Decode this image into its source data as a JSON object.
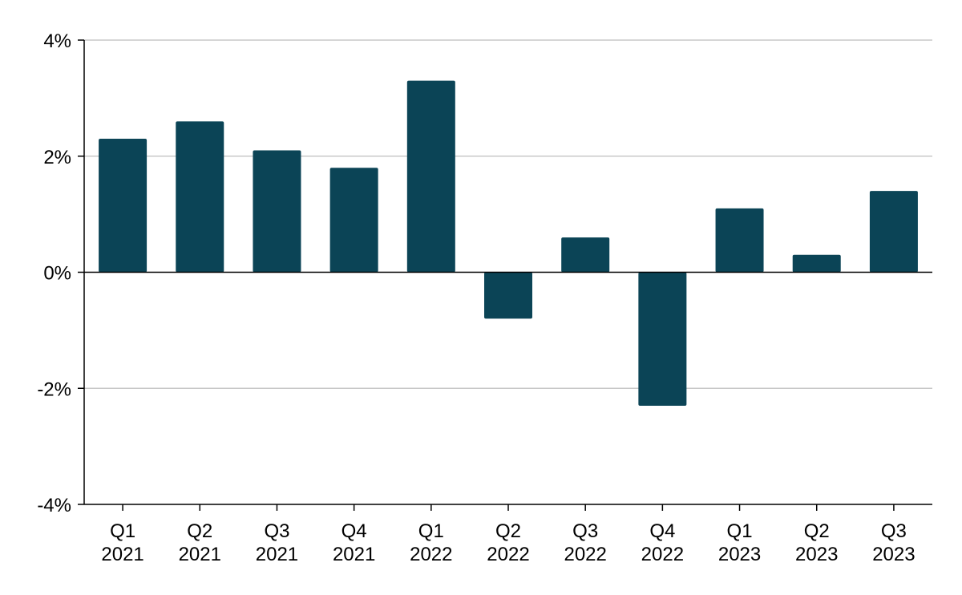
{
  "chart_data": {
    "type": "bar",
    "title": "",
    "xlabel": "",
    "ylabel": "",
    "categories": [
      [
        "Q1",
        "2021"
      ],
      [
        "Q2",
        "2021"
      ],
      [
        "Q3",
        "2021"
      ],
      [
        "Q4",
        "2021"
      ],
      [
        "Q1",
        "2022"
      ],
      [
        "Q2",
        "2022"
      ],
      [
        "Q3",
        "2022"
      ],
      [
        "Q4",
        "2022"
      ],
      [
        "Q1",
        "2023"
      ],
      [
        "Q2",
        "2023"
      ],
      [
        "Q3",
        "2023"
      ]
    ],
    "values": [
      2.3,
      2.6,
      2.1,
      1.8,
      3.3,
      -0.8,
      0.6,
      -2.3,
      1.1,
      0.3,
      1.4
    ],
    "ylim": [
      -4,
      4
    ],
    "yticks": [
      4,
      2,
      0,
      -2,
      -4
    ],
    "ytick_labels": [
      "4%",
      "2%",
      "0%",
      "-2%",
      "-4%"
    ],
    "grid": true,
    "legend": "none",
    "colors": {
      "bar": "#0b4456",
      "grid": "#c8c8c8",
      "axis": "#000000"
    }
  }
}
